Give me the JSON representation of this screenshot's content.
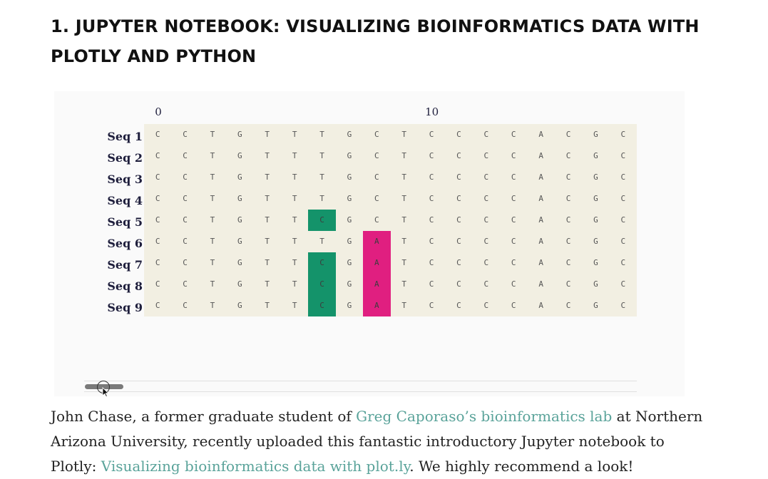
{
  "heading": "1. JUPYTER NOTEBOOK: VISUALIZING BIOINFORMATICS DATA WITH PLOTLY AND PYTHON",
  "chart_data": {
    "type": "heatmap",
    "x_ticks": [
      "0",
      "10"
    ],
    "row_labels": [
      "Seq 1",
      "Seq 2",
      "Seq 3",
      "Seq 4",
      "Seq 5",
      "Seq 6",
      "Seq 7",
      "Seq 8",
      "Seq 9"
    ],
    "sequences": [
      [
        "C",
        "C",
        "T",
        "G",
        "T",
        "T",
        "T",
        "G",
        "C",
        "T",
        "C",
        "C",
        "C",
        "C",
        "A",
        "C",
        "G",
        "C"
      ],
      [
        "C",
        "C",
        "T",
        "G",
        "T",
        "T",
        "T",
        "G",
        "C",
        "T",
        "C",
        "C",
        "C",
        "C",
        "A",
        "C",
        "G",
        "C"
      ],
      [
        "C",
        "C",
        "T",
        "G",
        "T",
        "T",
        "T",
        "G",
        "C",
        "T",
        "C",
        "C",
        "C",
        "C",
        "A",
        "C",
        "G",
        "C"
      ],
      [
        "C",
        "C",
        "T",
        "G",
        "T",
        "T",
        "T",
        "G",
        "C",
        "T",
        "C",
        "C",
        "C",
        "C",
        "A",
        "C",
        "G",
        "C"
      ],
      [
        "C",
        "C",
        "T",
        "G",
        "T",
        "T",
        "C",
        "G",
        "C",
        "T",
        "C",
        "C",
        "C",
        "C",
        "A",
        "C",
        "G",
        "C"
      ],
      [
        "C",
        "C",
        "T",
        "G",
        "T",
        "T",
        "T",
        "G",
        "A",
        "T",
        "C",
        "C",
        "C",
        "C",
        "A",
        "C",
        "G",
        "C"
      ],
      [
        "C",
        "C",
        "T",
        "G",
        "T",
        "T",
        "C",
        "G",
        "A",
        "T",
        "C",
        "C",
        "C",
        "C",
        "A",
        "C",
        "G",
        "C"
      ],
      [
        "C",
        "C",
        "T",
        "G",
        "T",
        "T",
        "C",
        "G",
        "A",
        "T",
        "C",
        "C",
        "C",
        "C",
        "A",
        "C",
        "G",
        "C"
      ],
      [
        "C",
        "C",
        "T",
        "G",
        "T",
        "T",
        "C",
        "G",
        "A",
        "T",
        "C",
        "C",
        "C",
        "C",
        "A",
        "C",
        "G",
        "C"
      ]
    ],
    "background_color": "#f2efe2",
    "highlight_colors": {
      "C": "#14936a",
      "A": "#e01f80"
    },
    "highlights": [
      [
        4,
        6,
        "C"
      ],
      [
        5,
        8,
        "A"
      ],
      [
        6,
        6,
        "C"
      ],
      [
        6,
        8,
        "A"
      ],
      [
        7,
        6,
        "C"
      ],
      [
        7,
        8,
        "A"
      ],
      [
        8,
        6,
        "C"
      ],
      [
        8,
        8,
        "A"
      ]
    ]
  },
  "paragraph": {
    "before": "John Chase, a former graduate student of ",
    "link1": "Greg Caporaso’s bioinformatics lab",
    "middle": " at Northern Arizona University, recently uploaded this fantastic introductory Jupyter notebook to Plotly: ",
    "link2": "Visualizing bioinformatics data with plot.ly",
    "after": ". We highly recommend a look!"
  },
  "colors": {
    "link": "#5aa39a",
    "text": "#222222"
  }
}
